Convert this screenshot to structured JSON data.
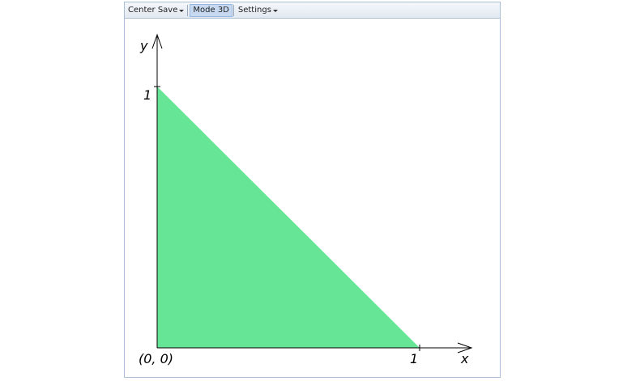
{
  "toolbar": {
    "center_save": "Center Save",
    "mode_3d": "Mode 3D",
    "settings": "Settings"
  },
  "graph": {
    "region_color": "#66e596",
    "axis_label_y": "y",
    "axis_label_x": "x",
    "origin_label": "(0, 0)",
    "x_tick_label": "1",
    "y_tick_label": "1"
  }
}
